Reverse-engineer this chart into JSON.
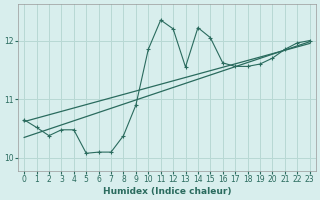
{
  "xlabel": "Humidex (Indice chaleur)",
  "bg_color": "#d8eeed",
  "line_color": "#2a6b5e",
  "grid_color": "#b8d8d4",
  "x_data": [
    0,
    1,
    2,
    3,
    4,
    5,
    6,
    7,
    8,
    9,
    10,
    11,
    12,
    13,
    14,
    15,
    16,
    17,
    18,
    19,
    20,
    21,
    22,
    23
  ],
  "y_data": [
    10.65,
    10.52,
    10.38,
    10.48,
    10.48,
    10.08,
    10.1,
    10.1,
    10.38,
    10.9,
    11.85,
    12.35,
    12.2,
    11.55,
    12.22,
    12.05,
    11.62,
    11.56,
    11.56,
    11.6,
    11.7,
    11.85,
    11.96,
    12.0
  ],
  "trend1_start": 10.62,
  "trend1_end": 11.95,
  "trend2_start": 10.35,
  "trend2_end": 11.98,
  "xlim": [
    -0.5,
    23.5
  ],
  "ylim": [
    9.78,
    12.62
  ],
  "yticks": [
    10,
    11,
    12
  ],
  "xticks": [
    0,
    1,
    2,
    3,
    4,
    5,
    6,
    7,
    8,
    9,
    10,
    11,
    12,
    13,
    14,
    15,
    16,
    17,
    18,
    19,
    20,
    21,
    22,
    23
  ],
  "xlabel_fontsize": 6.5,
  "tick_fontsize": 5.5
}
